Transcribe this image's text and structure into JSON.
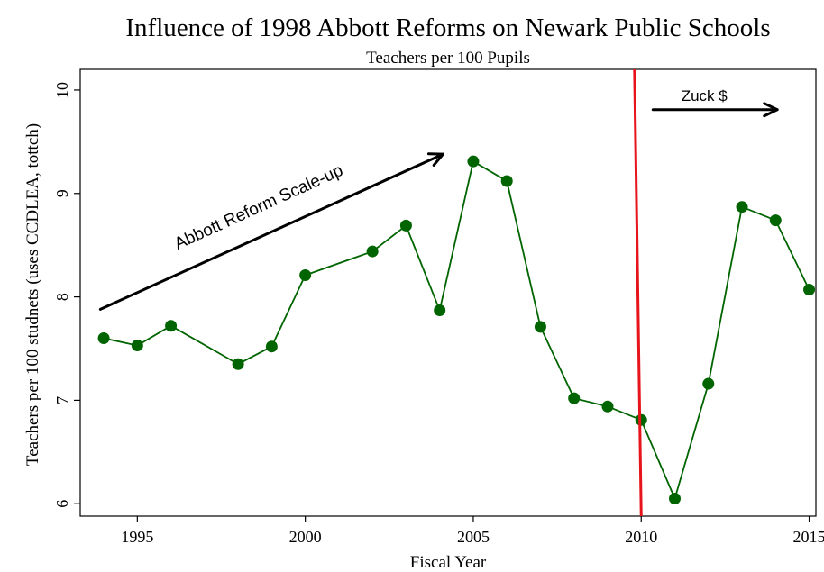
{
  "chart_data": {
    "type": "line",
    "title": "Influence of 1998 Abbott Reforms on Newark Public Schools",
    "subtitle": "Teachers per 100 Pupils",
    "xlabel": "Fiscal Year",
    "ylabel": "Teachers per 100 studnets (uses CCDLEA, tottch)",
    "xlim": [
      1993.3,
      2015.2
    ],
    "ylim": [
      5.88,
      10.2
    ],
    "x_ticks": [
      1995,
      2000,
      2005,
      2010,
      2015
    ],
    "y_ticks": [
      6,
      7,
      8,
      9,
      10
    ],
    "grid": false,
    "series": [
      {
        "color": "#006400",
        "x": [
          1994,
          1995,
          1996,
          1998,
          1999,
          2000,
          2002,
          2003,
          2004,
          2005,
          2006,
          2007,
          2008,
          2009,
          2010,
          2011,
          2012,
          2013,
          2014,
          2015
        ],
        "y": [
          7.6,
          7.53,
          7.72,
          7.35,
          7.52,
          8.21,
          8.44,
          8.69,
          7.87,
          9.31,
          9.12,
          7.71,
          7.02,
          6.94,
          6.81,
          6.05,
          7.16,
          8.87,
          8.74,
          8.07
        ]
      }
    ],
    "annotations": {
      "abbott_text": "Abbott Reform Scale-up",
      "abbott_arrow": {
        "from": [
          1993.9,
          7.88
        ],
        "to": [
          2004.1,
          9.38
        ]
      },
      "zuck_text": "Zuck $",
      "zuck_arrow": {
        "from": [
          2010.35,
          9.81
        ],
        "to": [
          2014.05,
          9.81
        ]
      },
      "reference_line": {
        "color": "#e8141b",
        "from": [
          2009.8,
          10.2
        ],
        "to": [
          2010.0,
          5.88
        ]
      }
    }
  }
}
